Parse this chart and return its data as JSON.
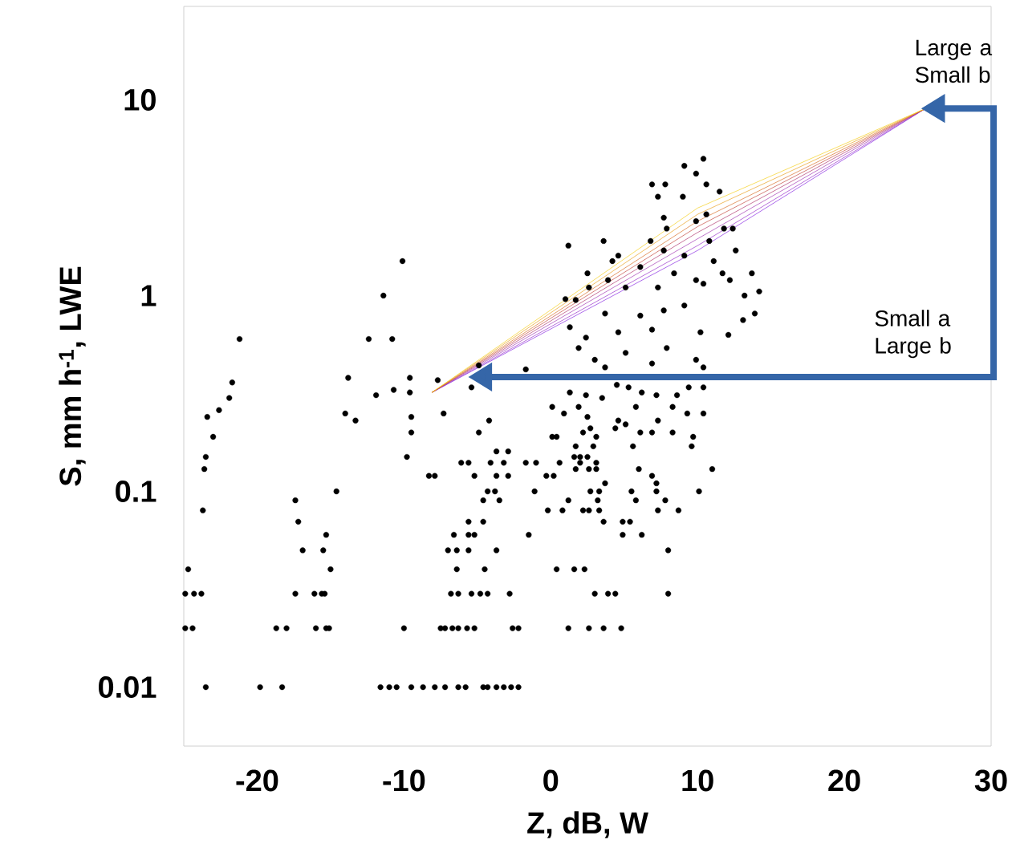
{
  "chart_data": {
    "type": "scatter",
    "xlabel": "Z, dB, W",
    "ylabel": "S, mm h$^{-1}$, LWE",
    "log": "y",
    "xlim": [
      -25,
      30
    ],
    "ylim": [
      0.005,
      30
    ],
    "xticks": [
      -20,
      -10,
      0,
      10,
      20,
      30
    ],
    "yticks": [
      0.01,
      0.1,
      1,
      10
    ],
    "annotations": [
      "Large a Small b",
      "Small a Large b"
    ],
    "series": [
      {
        "marker": "circle",
        "color": "#000000",
        "x": [
          -10.1,
          -11.4,
          -21.2,
          -12.4,
          -10.8,
          -21.7,
          -21.9,
          -22.6,
          -23.4,
          -23.0,
          -23.5,
          -23.6,
          -23.7,
          -24.7,
          -24.9,
          -24.3,
          -23.8,
          -24.9,
          -24.4,
          -23.5,
          -19.8,
          -18.3,
          -13.8,
          -14.0,
          -13.3,
          -11.9,
          -10.7,
          -9.6,
          -9.6,
          -9.5,
          -9.5,
          -9.8,
          -8.3,
          -7.9,
          -7.7,
          -7.3,
          -14.6,
          -17.4,
          -17.2,
          -16.9,
          -15.3,
          -15.5,
          -15.0,
          -17.4,
          -16.1,
          -15.6,
          -15.4,
          -18.7,
          -18.0,
          -16.0,
          -15.3,
          -15.1,
          -10.0,
          -11.6,
          -11.0,
          -10.5,
          -9.5,
          -8.7,
          -7.9,
          -7.2,
          -6.3,
          -5.8,
          -4.6,
          -4.3,
          -3.7,
          -3.2,
          -2.7,
          -2.2,
          -7.5,
          -7.2,
          -6.7,
          -6.3,
          -5.7,
          -5.2,
          -2.6,
          -2.2,
          -6.8,
          -6.3,
          -5.4,
          -4.8,
          -4.3,
          -2.8,
          -6.4,
          -4.5,
          -7.0,
          -6.4,
          -5.6,
          -3.7,
          -6.6,
          -5.6,
          -5.2,
          -1.5,
          -5.6,
          -4.6,
          -4.6,
          -3.5,
          -4.3,
          -3.8,
          -1.1,
          -5.2,
          -3.7,
          -2.9,
          -6.1,
          -5.6,
          -4.1,
          -3.2,
          -1.7,
          -1.0,
          -3.7,
          -2.9,
          -4.2,
          -4.9,
          -5.4,
          -4.9,
          -1.7,
          10.4,
          9.1,
          9.9,
          10.6,
          6.9,
          7.8,
          7.3,
          11.5,
          9.0,
          7.7,
          10.6,
          9.9,
          7.9,
          12.4,
          11.8,
          6.8,
          3.6,
          1.2,
          12.6,
          4.6,
          7.7,
          9.1,
          10.8,
          11.1,
          4.2,
          6.1,
          8.4,
          9.9,
          11.7,
          2.5,
          3.9,
          12.2,
          13.7,
          14.2,
          13.2,
          10.4,
          2.6,
          5.1,
          7.3,
          1.0,
          1.7,
          13.9,
          13.1,
          12.1,
          9.1,
          7.7,
          6.1,
          3.7,
          1.3,
          2.4,
          4.6,
          6.9,
          10.2,
          5.1,
          7.9,
          9.9,
          3.0,
          1.9,
          6.9,
          10.4,
          3.7,
          1.3,
          2.4,
          3.5,
          4.5,
          5.3,
          6.2,
          7.2,
          8.6,
          9.4,
          10.4,
          0.1,
          1.9,
          5.8,
          8.3,
          10.4,
          9.3,
          0.9,
          2.5,
          4.6,
          7.3,
          5.1,
          4.4,
          0.1,
          0.4,
          2.7,
          2.2,
          3.1,
          6.1,
          6.9,
          8.3,
          9.7,
          1.7,
          2.9,
          5.6,
          9.6,
          1.6,
          2.0,
          2.5,
          2.0,
          3.1,
          0.6,
          1.7,
          2.6,
          3.1,
          6.0,
          11.0,
          -0.3,
          0.2,
          6.9,
          3.7,
          7.2,
          2.7,
          3.3,
          5.5,
          7.2,
          10.1,
          1.2,
          3.2,
          5.8,
          7.8,
          -0.2,
          0.8,
          2.2,
          2.6,
          3.3,
          7.3,
          8.7,
          3.6,
          4.9,
          5.4,
          4.9,
          6.2,
          8.0,
          0.4,
          1.6,
          2.3,
          3.0,
          3.9,
          4.4,
          8.0,
          1.2,
          2.6,
          3.6,
          4.8
        ],
        "values": [
          1.5,
          1.0,
          0.6,
          0.6,
          0.6,
          0.36,
          0.3,
          0.26,
          0.24,
          0.19,
          0.15,
          0.13,
          0.08,
          0.04,
          0.03,
          0.03,
          0.03,
          0.02,
          0.02,
          0.01,
          0.01,
          0.01,
          0.38,
          0.25,
          0.23,
          0.31,
          0.33,
          0.38,
          0.32,
          0.24,
          0.2,
          0.15,
          0.12,
          0.12,
          0.37,
          0.25,
          0.1,
          0.09,
          0.07,
          0.05,
          0.06,
          0.05,
          0.04,
          0.03,
          0.03,
          0.03,
          0.03,
          0.02,
          0.02,
          0.02,
          0.02,
          0.02,
          0.02,
          0.01,
          0.01,
          0.01,
          0.01,
          0.01,
          0.01,
          0.01,
          0.01,
          0.01,
          0.01,
          0.01,
          0.01,
          0.01,
          0.01,
          0.01,
          0.02,
          0.02,
          0.02,
          0.02,
          0.02,
          0.02,
          0.02,
          0.02,
          0.03,
          0.03,
          0.03,
          0.03,
          0.03,
          0.03,
          0.04,
          0.04,
          0.05,
          0.05,
          0.05,
          0.05,
          0.06,
          0.06,
          0.06,
          0.06,
          0.07,
          0.07,
          0.09,
          0.09,
          0.1,
          0.1,
          0.1,
          0.12,
          0.12,
          0.12,
          0.14,
          0.14,
          0.14,
          0.14,
          0.14,
          0.14,
          0.16,
          0.16,
          0.23,
          0.2,
          0.34,
          0.44,
          0.42,
          5.0,
          4.6,
          4.2,
          3.7,
          3.7,
          3.7,
          3.2,
          3.4,
          3.2,
          2.5,
          2.6,
          2.4,
          2.2,
          2.2,
          2.2,
          1.9,
          1.9,
          1.8,
          1.7,
          1.6,
          1.7,
          1.6,
          1.9,
          1.5,
          1.5,
          1.4,
          1.3,
          1.2,
          1.3,
          1.3,
          1.2,
          1.2,
          1.3,
          1.05,
          1.0,
          1.15,
          1.1,
          1.1,
          1.1,
          0.96,
          0.95,
          0.81,
          0.75,
          0.63,
          0.89,
          0.84,
          0.79,
          0.81,
          0.69,
          0.61,
          0.65,
          0.67,
          0.65,
          0.51,
          0.54,
          0.47,
          0.47,
          0.54,
          0.45,
          0.43,
          0.43,
          0.32,
          0.31,
          0.3,
          0.35,
          0.34,
          0.32,
          0.31,
          0.31,
          0.34,
          0.34,
          0.27,
          0.27,
          0.27,
          0.27,
          0.25,
          0.25,
          0.25,
          0.24,
          0.23,
          0.23,
          0.22,
          0.21,
          0.19,
          0.19,
          0.21,
          0.2,
          0.19,
          0.2,
          0.2,
          0.2,
          0.19,
          0.17,
          0.17,
          0.17,
          0.17,
          0.15,
          0.15,
          0.15,
          0.14,
          0.14,
          0.14,
          0.13,
          0.13,
          0.13,
          0.13,
          0.13,
          0.12,
          0.12,
          0.12,
          0.11,
          0.11,
          0.1,
          0.1,
          0.1,
          0.1,
          0.1,
          0.09,
          0.09,
          0.09,
          0.09,
          0.08,
          0.08,
          0.08,
          0.08,
          0.08,
          0.08,
          0.08,
          0.07,
          0.07,
          0.07,
          0.06,
          0.06,
          0.05,
          0.04,
          0.04,
          0.04,
          0.03,
          0.03,
          0.03,
          0.03,
          0.02,
          0.02,
          0.02,
          0.02
        ]
      },
      {
        "type": "line",
        "marker": "none",
        "color": "#8a2be2",
        "x": [
          -8.1,
          10,
          25.5
        ],
        "values": [
          0.32,
          1.7,
          9.0
        ]
      },
      {
        "type": "line",
        "marker": "none",
        "color": "#9932cc",
        "x": [
          -8.1,
          10,
          25.5
        ],
        "values": [
          0.32,
          1.8,
          9.0
        ]
      },
      {
        "type": "line",
        "marker": "none",
        "color": "#a33cb4",
        "x": [
          -8.1,
          10,
          25.5
        ],
        "values": [
          0.32,
          1.95,
          9.0
        ]
      },
      {
        "type": "line",
        "marker": "none",
        "color": "#b03a70",
        "x": [
          -8.1,
          10,
          25.5
        ],
        "values": [
          0.32,
          2.1,
          9.0
        ]
      },
      {
        "type": "line",
        "marker": "none",
        "color": "#c44a40",
        "x": [
          -8.1,
          10,
          25.5
        ],
        "values": [
          0.32,
          2.25,
          9.0
        ]
      },
      {
        "type": "line",
        "marker": "none",
        "color": "#d8702a",
        "x": [
          -8.1,
          10,
          25.5
        ],
        "values": [
          0.32,
          2.4,
          9.0
        ]
      },
      {
        "type": "line",
        "marker": "none",
        "color": "#eaa020",
        "x": [
          -8.1,
          10,
          25.5
        ],
        "values": [
          0.32,
          2.6,
          9.0
        ]
      },
      {
        "type": "line",
        "marker": "none",
        "color": "#f5d020",
        "x": [
          -8.1,
          10,
          25.5
        ],
        "values": [
          0.32,
          2.8,
          9.0
        ]
      }
    ]
  }
}
